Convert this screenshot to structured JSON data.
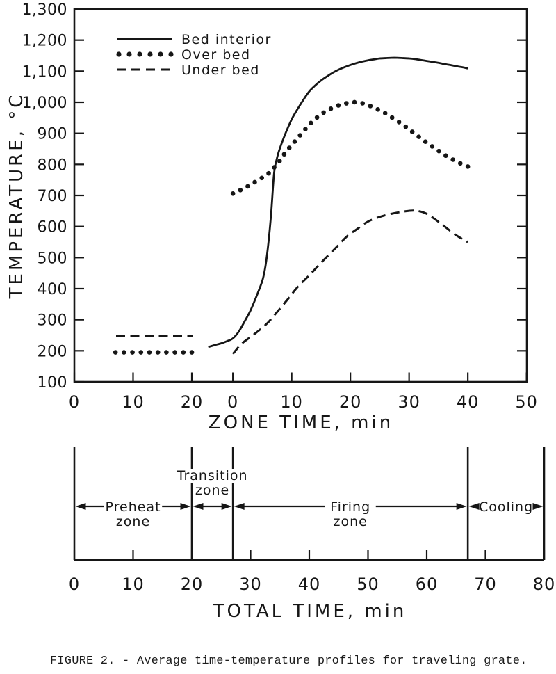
{
  "figure": {
    "caption": "FIGURE 2. - Average time-temperature profiles for traveling grate."
  },
  "colors": {
    "ink": "#161616",
    "paper": "#ffffff"
  },
  "chart_data": {
    "type": "line",
    "title": "",
    "x_axis": {
      "label": "ZONE TIME, min",
      "note": "zone time restarts at 0 where the firing zone begins (27 min total time); tick positions are given in total minutes",
      "ticks": [
        {
          "label": "0",
          "total_min": 0
        },
        {
          "label": "10",
          "total_min": 10
        },
        {
          "label": "20",
          "total_min": 20
        },
        {
          "label": "0",
          "total_min": 27
        },
        {
          "label": "10",
          "total_min": 37
        },
        {
          "label": "20",
          "total_min": 47
        },
        {
          "label": "30",
          "total_min": 57
        },
        {
          "label": "40",
          "total_min": 67
        },
        {
          "label": "50",
          "total_min": 77
        }
      ]
    },
    "y_axis": {
      "label": "TEMPERATURE, °C",
      "min": 100,
      "max": 1300,
      "tick_step": 100,
      "tick_labels": [
        "100",
        "200",
        "300",
        "400",
        "500",
        "600",
        "700",
        "800",
        "900",
        "1,000",
        "1,100",
        "1,200",
        "1,300"
      ]
    },
    "legend": [
      {
        "label": "Bed interior",
        "style": "solid"
      },
      {
        "label": "Over bed",
        "style": "dotted"
      },
      {
        "label": "Under bed",
        "style": "dashed"
      }
    ],
    "series": [
      {
        "name": "Bed interior",
        "style": "solid",
        "segments": [
          {
            "offset_total_min": 27,
            "points": [
              [
                -4.2,
                212
              ],
              [
                -3,
                219
              ],
              [
                -2,
                224
              ],
              [
                -1,
                231
              ],
              [
                0,
                240
              ],
              [
                1,
                262
              ],
              [
                2,
                295
              ],
              [
                3,
                330
              ],
              [
                4,
                375
              ],
              [
                5,
                425
              ],
              [
                5.5,
                468
              ],
              [
                6,
                540
              ],
              [
                6.5,
                640
              ],
              [
                7,
                770
              ],
              [
                7.5,
                820
              ],
              [
                8,
                852
              ],
              [
                9,
                902
              ],
              [
                10,
                945
              ],
              [
                11,
                978
              ],
              [
                12,
                1008
              ],
              [
                13,
                1035
              ],
              [
                14,
                1054
              ],
              [
                15,
                1070
              ],
              [
                16,
                1083
              ],
              [
                17,
                1095
              ],
              [
                18,
                1105
              ],
              [
                19,
                1113
              ],
              [
                20,
                1120
              ],
              [
                21,
                1126
              ],
              [
                22,
                1131
              ],
              [
                23,
                1135
              ],
              [
                24,
                1138
              ],
              [
                25,
                1141
              ],
              [
                26,
                1142
              ],
              [
                27,
                1143
              ],
              [
                28,
                1143
              ],
              [
                29,
                1142
              ],
              [
                30,
                1141
              ],
              [
                31,
                1139
              ],
              [
                32,
                1136
              ],
              [
                33,
                1133
              ],
              [
                34,
                1130
              ],
              [
                35,
                1127
              ],
              [
                36,
                1123
              ],
              [
                37,
                1120
              ],
              [
                38,
                1116
              ],
              [
                39,
                1113
              ],
              [
                40,
                1109
              ]
            ]
          }
        ]
      },
      {
        "name": "Over bed",
        "style": "dotted",
        "segments": [
          {
            "offset_total_min": 0,
            "points": [
              [
                7,
                195
              ],
              [
                20,
                195
              ]
            ]
          },
          {
            "offset_total_min": 27,
            "points": [
              [
                0,
                706
              ],
              [
                2,
                724
              ],
              [
                4,
                746
              ],
              [
                6,
                770
              ],
              [
                7,
                790
              ],
              [
                8,
                812
              ],
              [
                9,
                840
              ],
              [
                10,
                862
              ],
              [
                11,
                884
              ],
              [
                12,
                906
              ],
              [
                13,
                928
              ],
              [
                14,
                946
              ],
              [
                15,
                961
              ],
              [
                16,
                973
              ],
              [
                17,
                982
              ],
              [
                18,
                990
              ],
              [
                19,
                995
              ],
              [
                20,
                999
              ],
              [
                21,
                1000
              ],
              [
                22,
                997
              ],
              [
                23,
                991
              ],
              [
                24,
                983
              ],
              [
                25,
                974
              ],
              [
                26,
                964
              ],
              [
                27,
                952
              ],
              [
                28,
                940
              ],
              [
                29,
                927
              ],
              [
                30,
                913
              ],
              [
                31,
                898
              ],
              [
                32,
                884
              ],
              [
                33,
                870
              ],
              [
                34,
                857
              ],
              [
                35,
                844
              ],
              [
                36,
                831
              ],
              [
                37,
                820
              ],
              [
                38,
                810
              ],
              [
                39,
                801
              ],
              [
                40,
                793
              ]
            ]
          }
        ]
      },
      {
        "name": "Under bed",
        "style": "dashed",
        "segments": [
          {
            "offset_total_min": 0,
            "points": [
              [
                7.1,
                248
              ],
              [
                20.2,
                248
              ]
            ]
          },
          {
            "offset_total_min": 27,
            "points": [
              [
                0,
                190
              ],
              [
                1.5,
                223
              ],
              [
                3.6,
                253
              ],
              [
                5.7,
                286
              ],
              [
                7.3,
                320
              ],
              [
                9.3,
                365
              ],
              [
                11,
                405
              ],
              [
                13,
                443
              ],
              [
                15.5,
                493
              ],
              [
                17.6,
                533
              ],
              [
                19.4,
                568
              ],
              [
                21,
                590
              ],
              [
                23,
                616
              ],
              [
                25,
                631
              ],
              [
                27,
                641
              ],
              [
                29,
                648
              ],
              [
                31,
                651
              ],
              [
                33,
                641
              ],
              [
                35.5,
                608
              ],
              [
                38,
                572
              ],
              [
                40,
                550
              ]
            ]
          }
        ]
      }
    ]
  },
  "zone_diagram": {
    "axis": {
      "label": "TOTAL TIME, min",
      "min": 0,
      "max": 80,
      "tick_step": 10,
      "tick_labels": [
        "0",
        "10",
        "20",
        "30",
        "40",
        "50",
        "60",
        "70",
        "80"
      ]
    },
    "dividers_min": [
      0,
      20,
      27,
      67,
      80
    ],
    "zones": [
      {
        "lines": [
          "Preheat",
          "zone"
        ],
        "from_min": 0,
        "to_min": 20,
        "label_placement": "on-arrow"
      },
      {
        "lines": [
          "Transition",
          "zone"
        ],
        "from_min": 20,
        "to_min": 27,
        "label_placement": "above"
      },
      {
        "lines": [
          "Firing",
          "zone"
        ],
        "from_min": 27,
        "to_min": 67,
        "label_placement": "on-arrow"
      },
      {
        "lines": [
          "Cooling"
        ],
        "from_min": 67,
        "to_min": 80,
        "label_placement": "on-arrow"
      }
    ]
  }
}
